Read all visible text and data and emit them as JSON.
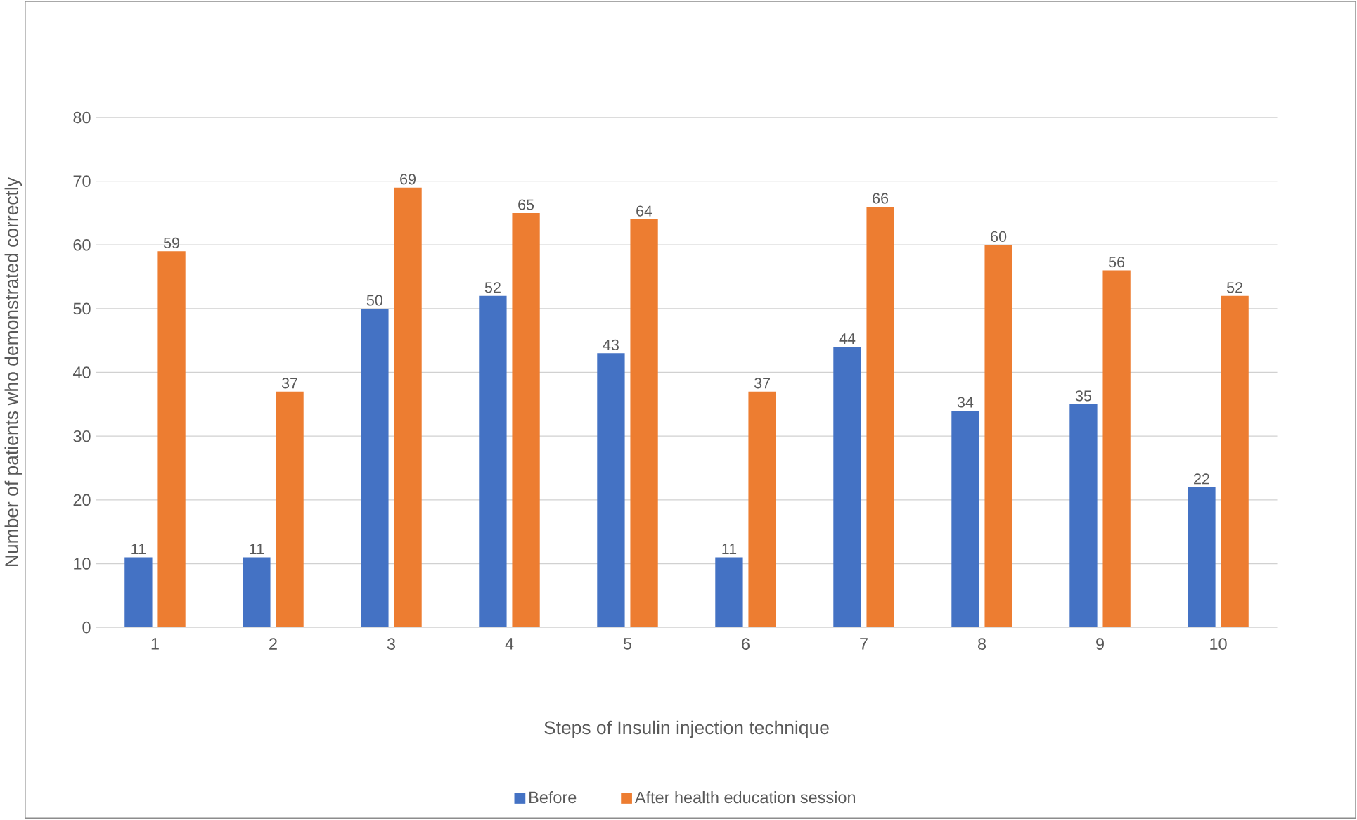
{
  "chart_data": {
    "type": "bar",
    "xlabel": "Steps of Insulin injection technique",
    "ylabel": "Number of patients who demonstrated correctly",
    "categories": [
      "1",
      "2",
      "3",
      "4",
      "5",
      "6",
      "7",
      "8",
      "9",
      "10"
    ],
    "series": [
      {
        "name": "Before",
        "color": "#4472c4",
        "values": [
          11,
          11,
          50,
          52,
          43,
          11,
          44,
          34,
          35,
          22
        ]
      },
      {
        "name": "After health education session",
        "color": "#ed7d31",
        "values": [
          59,
          37,
          69,
          65,
          64,
          37,
          66,
          60,
          56,
          52
        ]
      }
    ],
    "ylim": [
      0,
      80
    ],
    "yticks": [
      0,
      10,
      20,
      30,
      40,
      50,
      60,
      70,
      80
    ],
    "grid": "y",
    "legend": "bottom",
    "data_labels": true
  }
}
